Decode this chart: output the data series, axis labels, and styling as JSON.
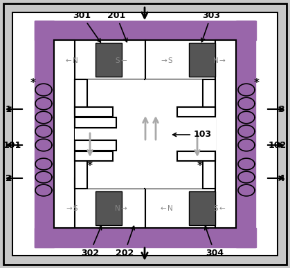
{
  "bg_color": "#c8c8c8",
  "outer_bg": "#ffffff",
  "core_bg": "#f0f0f0",
  "core_color": "#555555",
  "line_color": "#000000",
  "purple_color": "#9966aa",
  "gray_arrow_color": "#aaaaaa",
  "coil_color": "#000000"
}
